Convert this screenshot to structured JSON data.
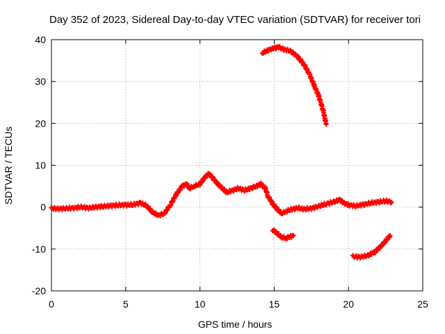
{
  "chart_data": {
    "type": "scatter",
    "title": "Day 352 of 2023, Sidereal Day-to-day VTEC variation (SDTVAR) for receiver tori",
    "xlabel": "GPS time / hours",
    "ylabel": "SDTVAR / TECUs",
    "xlim": [
      0,
      25
    ],
    "ylim": [
      -20,
      40
    ],
    "xticks": [
      0,
      5,
      10,
      15,
      20,
      25
    ],
    "yticks": [
      -20,
      -10,
      0,
      10,
      20,
      30,
      40
    ],
    "xtick_labels": [
      "0",
      "5",
      "10",
      "15",
      "20",
      "25"
    ],
    "ytick_labels": [
      "-20",
      "-10",
      "0",
      "10",
      "20",
      "30",
      "40"
    ],
    "grid": true,
    "marker_color": "#ff0000",
    "series": [
      {
        "name": "main",
        "points": [
          [
            0.0,
            -0.3
          ],
          [
            0.5,
            -0.4
          ],
          [
            1.0,
            -0.3
          ],
          [
            1.5,
            -0.2
          ],
          [
            2.0,
            0.0
          ],
          [
            2.5,
            -0.2
          ],
          [
            3.0,
            0.0
          ],
          [
            3.5,
            0.2
          ],
          [
            4.0,
            0.3
          ],
          [
            4.5,
            0.5
          ],
          [
            5.0,
            0.5
          ],
          [
            5.5,
            0.6
          ],
          [
            6.0,
            1.0
          ],
          [
            6.4,
            0.3
          ],
          [
            6.8,
            -1.2
          ],
          [
            7.2,
            -2.0
          ],
          [
            7.6,
            -1.5
          ],
          [
            8.0,
            0.5
          ],
          [
            8.4,
            3.0
          ],
          [
            8.8,
            5.0
          ],
          [
            9.1,
            5.5
          ],
          [
            9.3,
            4.5
          ],
          [
            9.6,
            5.0
          ],
          [
            10.0,
            5.5
          ],
          [
            10.3,
            7.0
          ],
          [
            10.6,
            8.0
          ],
          [
            10.9,
            6.8
          ],
          [
            11.2,
            5.5
          ],
          [
            11.5,
            4.5
          ],
          [
            11.8,
            3.5
          ],
          [
            12.2,
            4.0
          ],
          [
            12.6,
            4.5
          ],
          [
            13.0,
            4.0
          ],
          [
            13.4,
            4.5
          ],
          [
            13.8,
            5.0
          ],
          [
            14.1,
            5.5
          ],
          [
            14.4,
            4.5
          ],
          [
            14.6,
            2.5
          ],
          [
            14.9,
            0.8
          ],
          [
            15.2,
            -0.5
          ],
          [
            15.5,
            -1.5
          ],
          [
            15.8,
            -1.0
          ],
          [
            16.2,
            -0.5
          ],
          [
            16.6,
            -0.2
          ],
          [
            17.0,
            -0.5
          ],
          [
            17.5,
            -0.3
          ],
          [
            18.0,
            0.2
          ],
          [
            18.5,
            0.8
          ],
          [
            19.0,
            1.2
          ],
          [
            19.4,
            1.8
          ],
          [
            19.7,
            1.0
          ],
          [
            20.0,
            0.5
          ],
          [
            20.5,
            0.3
          ],
          [
            21.0,
            0.6
          ],
          [
            21.5,
            1.0
          ],
          [
            22.0,
            1.2
          ],
          [
            22.5,
            1.5
          ],
          [
            22.9,
            1.2
          ]
        ]
      },
      {
        "name": "upper-arc",
        "points": [
          [
            14.2,
            36.8
          ],
          [
            14.6,
            37.5
          ],
          [
            15.0,
            38.0
          ],
          [
            15.3,
            38.2
          ],
          [
            15.7,
            37.6
          ],
          [
            16.1,
            37.3
          ],
          [
            16.5,
            36.2
          ],
          [
            16.8,
            35.0
          ],
          [
            17.1,
            33.5
          ],
          [
            17.4,
            31.5
          ],
          [
            17.7,
            29.0
          ],
          [
            18.0,
            26.5
          ],
          [
            18.3,
            23.0
          ],
          [
            18.5,
            19.8
          ]
        ]
      },
      {
        "name": "lower-segment-1",
        "points": [
          [
            14.9,
            -5.4
          ],
          [
            15.2,
            -6.3
          ],
          [
            15.5,
            -7.2
          ],
          [
            15.8,
            -7.4
          ],
          [
            16.1,
            -7.0
          ],
          [
            16.3,
            -6.8
          ]
        ]
      },
      {
        "name": "lower-segment-2",
        "points": [
          [
            20.3,
            -11.8
          ],
          [
            20.8,
            -11.9
          ],
          [
            21.3,
            -11.6
          ],
          [
            21.8,
            -10.6
          ],
          [
            22.2,
            -9.3
          ],
          [
            22.5,
            -8.1
          ],
          [
            22.8,
            -6.8
          ]
        ]
      }
    ]
  }
}
